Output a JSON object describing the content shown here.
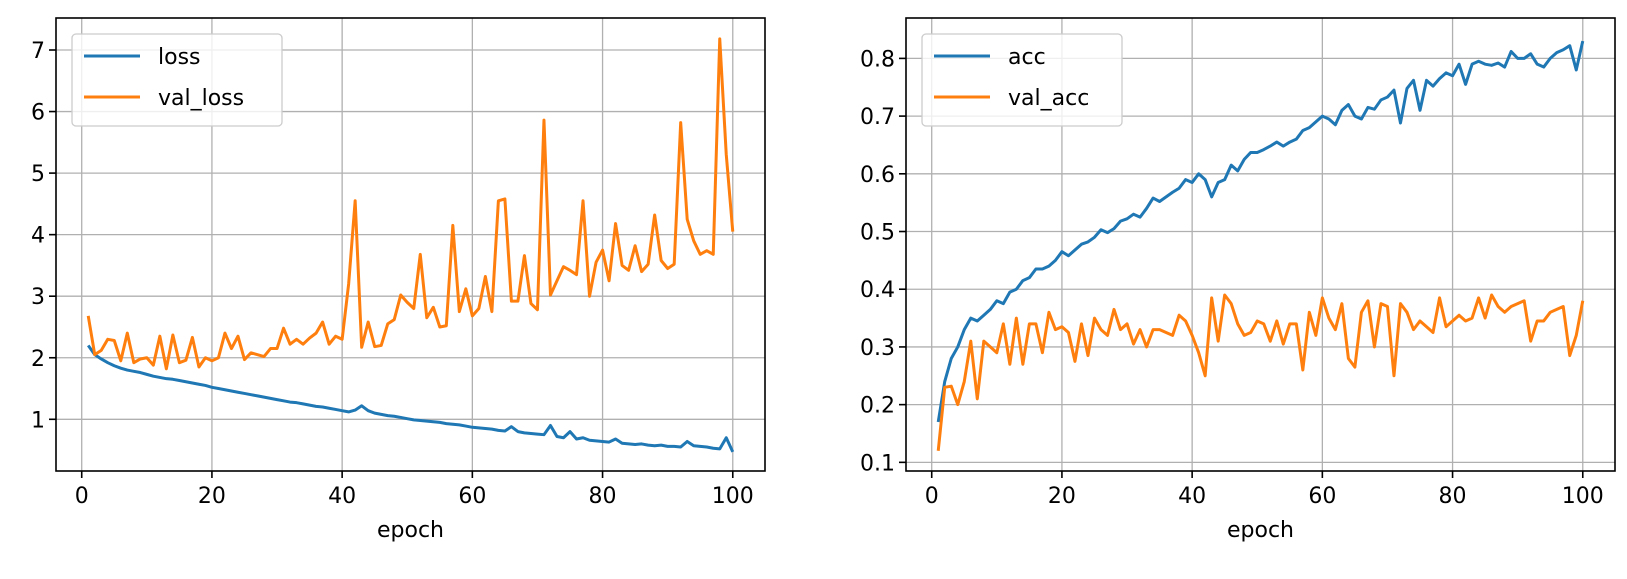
{
  "chart_data": [
    {
      "type": "line",
      "xlabel": "epoch",
      "ylabel": "",
      "xlim": [
        -3.95,
        104.95
      ],
      "ylim": [
        0.16,
        7.52
      ],
      "xticks": [
        0,
        20,
        40,
        60,
        80,
        100
      ],
      "yticks": [
        1,
        2,
        3,
        4,
        5,
        6,
        7
      ],
      "grid": true,
      "legend_position": "top-left",
      "x": [
        1,
        2,
        3,
        4,
        5,
        6,
        7,
        8,
        9,
        10,
        11,
        12,
        13,
        14,
        15,
        16,
        17,
        18,
        19,
        20,
        21,
        22,
        23,
        24,
        25,
        26,
        27,
        28,
        29,
        30,
        31,
        32,
        33,
        34,
        35,
        36,
        37,
        38,
        39,
        40,
        41,
        42,
        43,
        44,
        45,
        46,
        47,
        48,
        49,
        50,
        51,
        52,
        53,
        54,
        55,
        56,
        57,
        58,
        59,
        60,
        61,
        62,
        63,
        64,
        65,
        66,
        67,
        68,
        69,
        70,
        71,
        72,
        73,
        74,
        75,
        76,
        77,
        78,
        79,
        80,
        81,
        82,
        83,
        84,
        85,
        86,
        87,
        88,
        89,
        90,
        91,
        92,
        93,
        94,
        95,
        96,
        97,
        98,
        99,
        100
      ],
      "series": [
        {
          "name": "loss",
          "color": "#1f77b4",
          "values": [
            2.2,
            2.05,
            1.98,
            1.92,
            1.87,
            1.83,
            1.8,
            1.78,
            1.76,
            1.73,
            1.7,
            1.68,
            1.66,
            1.65,
            1.63,
            1.61,
            1.59,
            1.57,
            1.55,
            1.52,
            1.5,
            1.48,
            1.46,
            1.44,
            1.42,
            1.4,
            1.38,
            1.36,
            1.34,
            1.32,
            1.3,
            1.28,
            1.27,
            1.25,
            1.23,
            1.21,
            1.2,
            1.18,
            1.16,
            1.14,
            1.12,
            1.15,
            1.22,
            1.14,
            1.1,
            1.08,
            1.06,
            1.05,
            1.03,
            1.01,
            0.99,
            0.98,
            0.97,
            0.96,
            0.95,
            0.93,
            0.92,
            0.91,
            0.89,
            0.87,
            0.86,
            0.85,
            0.84,
            0.82,
            0.81,
            0.88,
            0.8,
            0.78,
            0.77,
            0.76,
            0.75,
            0.9,
            0.72,
            0.7,
            0.8,
            0.68,
            0.7,
            0.66,
            0.65,
            0.64,
            0.63,
            0.68,
            0.61,
            0.6,
            0.59,
            0.6,
            0.58,
            0.57,
            0.58,
            0.56,
            0.56,
            0.55,
            0.64,
            0.57,
            0.56,
            0.55,
            0.53,
            0.52,
            0.7,
            0.47
          ]
        },
        {
          "name": "val_loss",
          "color": "#ff7f0e",
          "values": [
            2.68,
            2.05,
            2.12,
            2.3,
            2.28,
            1.95,
            2.4,
            1.92,
            1.98,
            2.0,
            1.88,
            2.35,
            1.82,
            2.37,
            1.92,
            1.96,
            2.33,
            1.85,
            2.0,
            1.95,
            2.0,
            2.4,
            2.15,
            2.35,
            1.97,
            2.08,
            2.05,
            2.02,
            2.15,
            2.15,
            2.48,
            2.22,
            2.3,
            2.22,
            2.32,
            2.4,
            2.58,
            2.22,
            2.35,
            2.3,
            3.2,
            4.55,
            2.17,
            2.58,
            2.18,
            2.2,
            2.55,
            2.62,
            3.02,
            2.9,
            2.8,
            3.68,
            2.65,
            2.82,
            2.5,
            2.52,
            4.15,
            2.75,
            3.12,
            2.68,
            2.8,
            3.32,
            2.75,
            4.55,
            4.58,
            2.92,
            2.92,
            3.66,
            2.88,
            2.78,
            5.86,
            3.02,
            3.25,
            3.48,
            3.42,
            3.35,
            4.55,
            3.0,
            3.55,
            3.75,
            3.25,
            4.18,
            3.5,
            3.42,
            3.82,
            3.4,
            3.52,
            4.32,
            3.58,
            3.45,
            3.52,
            5.82,
            4.25,
            3.9,
            3.68,
            3.74,
            3.68,
            7.18,
            5.3,
            4.05
          ]
        }
      ]
    },
    {
      "type": "line",
      "xlabel": "epoch",
      "ylabel": "",
      "xlim": [
        -3.95,
        104.95
      ],
      "ylim": [
        0.085,
        0.87
      ],
      "xticks": [
        0,
        20,
        40,
        60,
        80,
        100
      ],
      "yticks": [
        0.1,
        0.2,
        0.3,
        0.4,
        0.5,
        0.6,
        0.7,
        0.8
      ],
      "grid": true,
      "legend_position": "top-left",
      "x": [
        1,
        2,
        3,
        4,
        5,
        6,
        7,
        8,
        9,
        10,
        11,
        12,
        13,
        14,
        15,
        16,
        17,
        18,
        19,
        20,
        21,
        22,
        23,
        24,
        25,
        26,
        27,
        28,
        29,
        30,
        31,
        32,
        33,
        34,
        35,
        36,
        37,
        38,
        39,
        40,
        41,
        42,
        43,
        44,
        45,
        46,
        47,
        48,
        49,
        50,
        51,
        52,
        53,
        54,
        55,
        56,
        57,
        58,
        59,
        60,
        61,
        62,
        63,
        64,
        65,
        66,
        67,
        68,
        69,
        70,
        71,
        72,
        73,
        74,
        75,
        76,
        77,
        78,
        79,
        80,
        81,
        82,
        83,
        84,
        85,
        86,
        87,
        88,
        89,
        90,
        91,
        92,
        93,
        94,
        95,
        96,
        97,
        98,
        99,
        100
      ],
      "series": [
        {
          "name": "acc",
          "color": "#1f77b4",
          "values": [
            0.17,
            0.24,
            0.28,
            0.3,
            0.33,
            0.35,
            0.345,
            0.355,
            0.365,
            0.38,
            0.375,
            0.395,
            0.4,
            0.415,
            0.42,
            0.435,
            0.435,
            0.44,
            0.45,
            0.465,
            0.458,
            0.468,
            0.478,
            0.482,
            0.49,
            0.503,
            0.498,
            0.505,
            0.518,
            0.522,
            0.53,
            0.525,
            0.54,
            0.558,
            0.552,
            0.56,
            0.568,
            0.575,
            0.59,
            0.585,
            0.6,
            0.59,
            0.56,
            0.585,
            0.59,
            0.615,
            0.605,
            0.625,
            0.637,
            0.637,
            0.642,
            0.648,
            0.655,
            0.648,
            0.655,
            0.66,
            0.675,
            0.68,
            0.69,
            0.7,
            0.695,
            0.685,
            0.71,
            0.72,
            0.7,
            0.695,
            0.715,
            0.712,
            0.728,
            0.733,
            0.745,
            0.688,
            0.748,
            0.762,
            0.71,
            0.762,
            0.752,
            0.765,
            0.775,
            0.77,
            0.79,
            0.755,
            0.79,
            0.795,
            0.79,
            0.788,
            0.792,
            0.785,
            0.812,
            0.8,
            0.8,
            0.808,
            0.79,
            0.785,
            0.8,
            0.81,
            0.815,
            0.822,
            0.78,
            0.83
          ]
        },
        {
          "name": "val_acc",
          "color": "#ff7f0e",
          "values": [
            0.12,
            0.23,
            0.232,
            0.2,
            0.24,
            0.31,
            0.21,
            0.31,
            0.3,
            0.29,
            0.34,
            0.27,
            0.35,
            0.27,
            0.34,
            0.34,
            0.29,
            0.36,
            0.33,
            0.335,
            0.325,
            0.275,
            0.34,
            0.285,
            0.35,
            0.33,
            0.32,
            0.365,
            0.33,
            0.34,
            0.305,
            0.33,
            0.3,
            0.33,
            0.33,
            0.325,
            0.32,
            0.355,
            0.345,
            0.32,
            0.29,
            0.25,
            0.385,
            0.31,
            0.39,
            0.375,
            0.34,
            0.32,
            0.325,
            0.345,
            0.34,
            0.31,
            0.345,
            0.305,
            0.34,
            0.34,
            0.26,
            0.36,
            0.32,
            0.385,
            0.35,
            0.33,
            0.375,
            0.28,
            0.265,
            0.36,
            0.38,
            0.3,
            0.375,
            0.37,
            0.25,
            0.375,
            0.36,
            0.33,
            0.345,
            0.335,
            0.325,
            0.385,
            0.335,
            0.345,
            0.355,
            0.345,
            0.35,
            0.385,
            0.35,
            0.39,
            0.37,
            0.36,
            0.37,
            0.375,
            0.38,
            0.31,
            0.345,
            0.345,
            0.36,
            0.365,
            0.37,
            0.285,
            0.32,
            0.38
          ]
        }
      ]
    }
  ]
}
